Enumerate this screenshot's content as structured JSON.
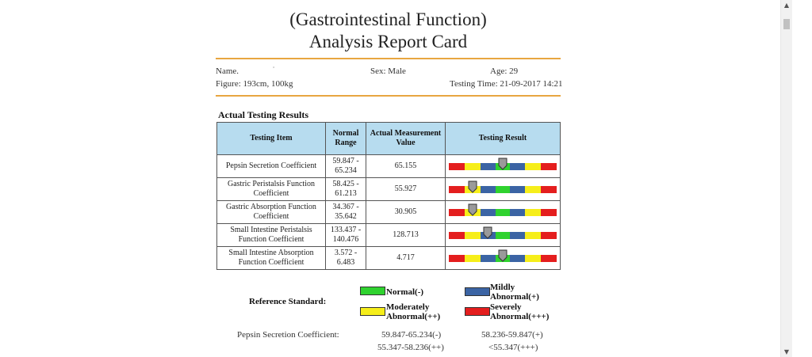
{
  "report": {
    "title_line1": "(Gastrointestinal Function)",
    "title_line2": "Analysis Report Card"
  },
  "patient": {
    "name_label": "Name.",
    "name_value": "·",
    "sex": "Sex: Male",
    "age": "Age: 29",
    "figure": "Figure: 193cm, 100kg",
    "testing_time": "Testing Time: 21-09-2017 14:21"
  },
  "results": {
    "section_title": "Actual Testing Results",
    "headers": {
      "item": "Testing Item",
      "range": "Normal Range",
      "measured": "Actual Measurement Value",
      "result": "Testing Result"
    },
    "rows": [
      {
        "item": "Pepsin Secretion Coefficient",
        "range": "59.847 - 65.234",
        "value": "65.155",
        "gauge_level": 0.5
      },
      {
        "item": "Gastric Peristalsis Function Coefficient",
        "range": "58.425 - 61.213",
        "value": "55.927",
        "gauge_level": 0.22
      },
      {
        "item": "Gastric Absorption Function Coefficient",
        "range": "34.367 - 35.642",
        "value": "30.905",
        "gauge_level": 0.22
      },
      {
        "item": "Small Intestine Peristalsis Function Coefficient",
        "range": "133.437 - 140.476",
        "value": "128.713",
        "gauge_level": 0.36
      },
      {
        "item": "Small Intestine Absorption Function Coefficient",
        "range": "3.572 - 6.483",
        "value": "4.717",
        "gauge_level": 0.5
      }
    ]
  },
  "reference": {
    "label": "Reference Standard:",
    "legend": {
      "normal": "Normal(-)",
      "mild": "Mildly Abnormal(+)",
      "moderate": "Moderately Abnormal(++)",
      "severe": "Severely Abnormal(+++)"
    },
    "item_name": "Pepsin Secretion Coefficient:",
    "normal_range": "59.847-65.234(-)",
    "mild_range": "58.236-59.847(+)",
    "moderate_range": "55.347-58.236(++)",
    "severe_range": "<55.347(+++)"
  },
  "colors": {
    "red": "#e41e1e",
    "yellow": "#f6ee1a",
    "blue": "#3b64a4",
    "green": "#2fd22f",
    "header_bg": "#b7dcef",
    "rule": "#e8a640",
    "pointer": "#9a9a9a"
  }
}
